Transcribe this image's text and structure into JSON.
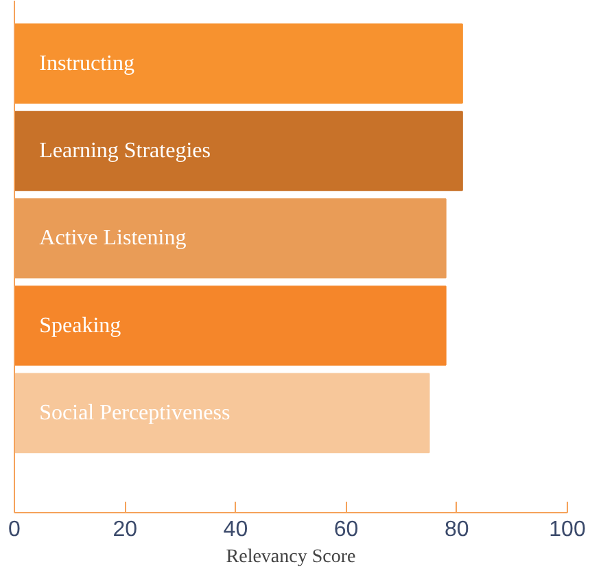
{
  "chart_data": {
    "type": "bar",
    "orientation": "horizontal",
    "xlabel": "Relevancy Score",
    "categories": [
      "Instructing",
      "Learning Strategies",
      "Active Listening",
      "Speaking",
      "Social Perceptiveness"
    ],
    "values": [
      81,
      81,
      78,
      78,
      75
    ],
    "colors": [
      "#f7922f",
      "#c87229",
      "#e99c57",
      "#f5862a",
      "#f7c79a"
    ],
    "xlim": [
      0,
      100
    ],
    "xticks": [
      0,
      20,
      40,
      60,
      80,
      100
    ],
    "grid": false
  }
}
